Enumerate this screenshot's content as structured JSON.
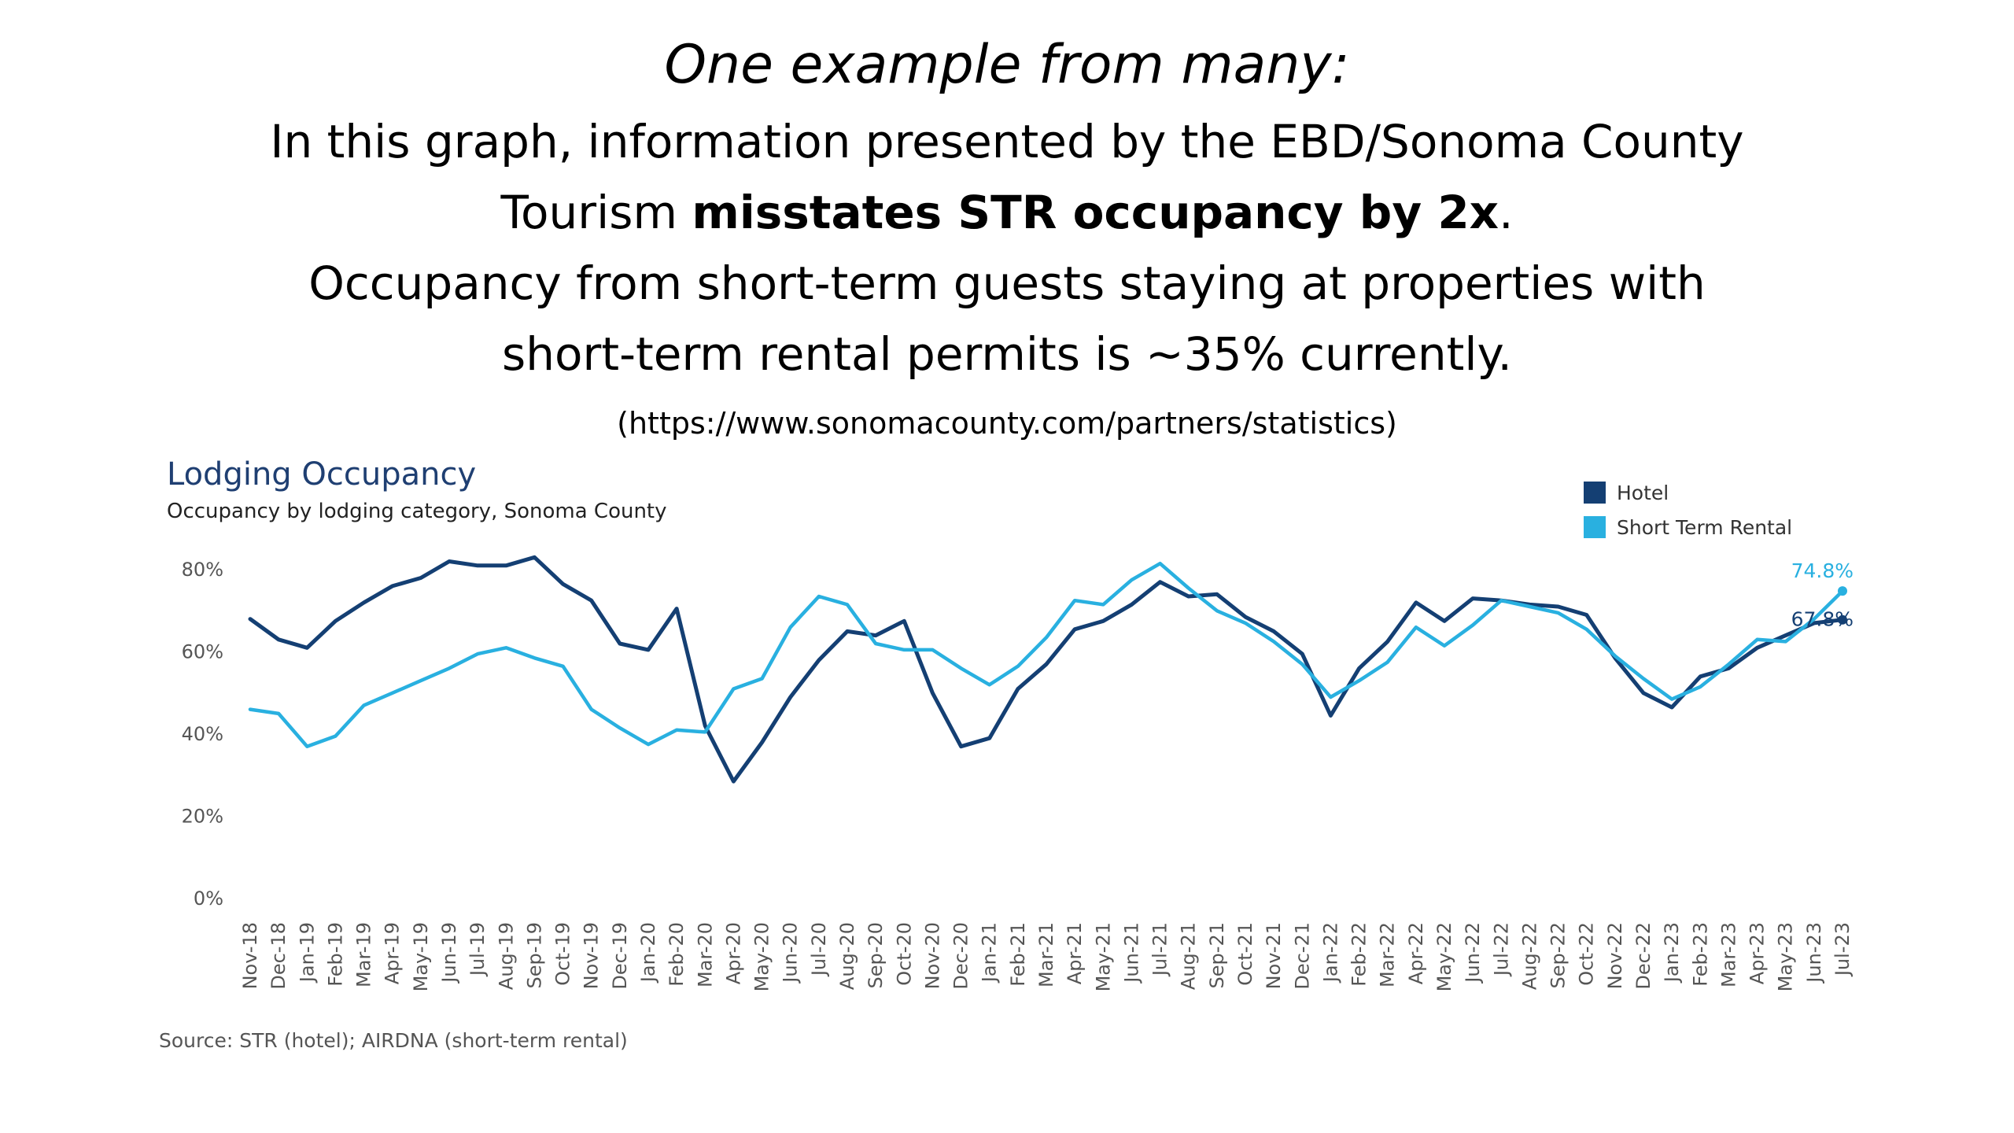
{
  "slide": {
    "heading": "One example from many:",
    "line1": "In this graph, information presented by the EBD/Sonoma County",
    "line2_prefix": "Tourism ",
    "line2_bold": "misstates STR occupancy by 2x",
    "line2_suffix": ".",
    "line3": "Occupancy from short-term guests staying at properties with",
    "line4": "short-term rental permits is ~35% currently.",
    "url": "(https://www.sonomacounty.com/partners/statistics)"
  },
  "chart_data": {
    "type": "line",
    "title": "Lodging Occupancy",
    "subtitle": "Occupancy by lodging category, Sonoma County",
    "source": "Source: STR (hotel); AIRDNA (short-term rental)",
    "x": [
      "Nov-18",
      "Dec-18",
      "Jan-19",
      "Feb-19",
      "Mar-19",
      "Apr-19",
      "May-19",
      "Jun-19",
      "Jul-19",
      "Aug-19",
      "Sep-19",
      "Oct-19",
      "Nov-19",
      "Dec-19",
      "Jan-20",
      "Feb-20",
      "Mar-20",
      "Apr-20",
      "May-20",
      "Jun-20",
      "Jul-20",
      "Aug-20",
      "Sep-20",
      "Oct-20",
      "Nov-20",
      "Dec-20",
      "Jan-21",
      "Feb-21",
      "Mar-21",
      "Apr-21",
      "May-21",
      "Jun-21",
      "Jul-21",
      "Aug-21",
      "Sep-21",
      "Oct-21",
      "Nov-21",
      "Dec-21",
      "Jan-22",
      "Feb-22",
      "Mar-22",
      "Apr-22",
      "May-22",
      "Jun-22",
      "Jul-22",
      "Aug-22",
      "Sep-22",
      "Oct-22",
      "Nov-22",
      "Dec-22",
      "Jan-23",
      "Feb-23",
      "Mar-23",
      "Apr-23",
      "May-23",
      "Jun-23",
      "Jul-23"
    ],
    "y_ticks": [
      "0%",
      "20%",
      "40%",
      "60%",
      "80%"
    ],
    "ylim": [
      0,
      80
    ],
    "grid": false,
    "legend_position": "top-right",
    "series": [
      {
        "name": "Hotel",
        "color": "#143f73",
        "end_label": "67.8%",
        "values": [
          68,
          63,
          61,
          67.5,
          72,
          76,
          78,
          82,
          81,
          81,
          83,
          76.5,
          72.5,
          62,
          60.5,
          70.5,
          42,
          28.5,
          38,
          49,
          58,
          65,
          64,
          67.5,
          50,
          37,
          39,
          51,
          57,
          65.5,
          67.5,
          71.5,
          77,
          73.5,
          74,
          68.5,
          65,
          59.5,
          44.5,
          56,
          62.5,
          72,
          67.5,
          73,
          72.5,
          71.5,
          71,
          69,
          58.5,
          50,
          46.5,
          54,
          56,
          61,
          64,
          67,
          67.8
        ]
      },
      {
        "name": "Short Term Rental",
        "color": "#29b0e0",
        "end_label": "74.8%",
        "values": [
          46,
          45,
          37,
          39.5,
          47,
          50,
          53,
          56,
          59.5,
          61,
          58.5,
          56.5,
          46,
          41.5,
          37.5,
          41,
          40.5,
          51,
          53.5,
          66,
          73.5,
          71.5,
          62,
          60.5,
          60.5,
          56,
          52,
          56.5,
          63.5,
          72.5,
          71.5,
          77.5,
          81.5,
          75.5,
          70,
          67,
          62.5,
          57,
          49,
          53,
          57.5,
          66,
          61.5,
          66.5,
          72.5,
          71,
          69.5,
          65.5,
          59,
          53.5,
          48.5,
          51.5,
          57,
          63,
          62.5,
          68,
          74.8
        ]
      }
    ]
  }
}
